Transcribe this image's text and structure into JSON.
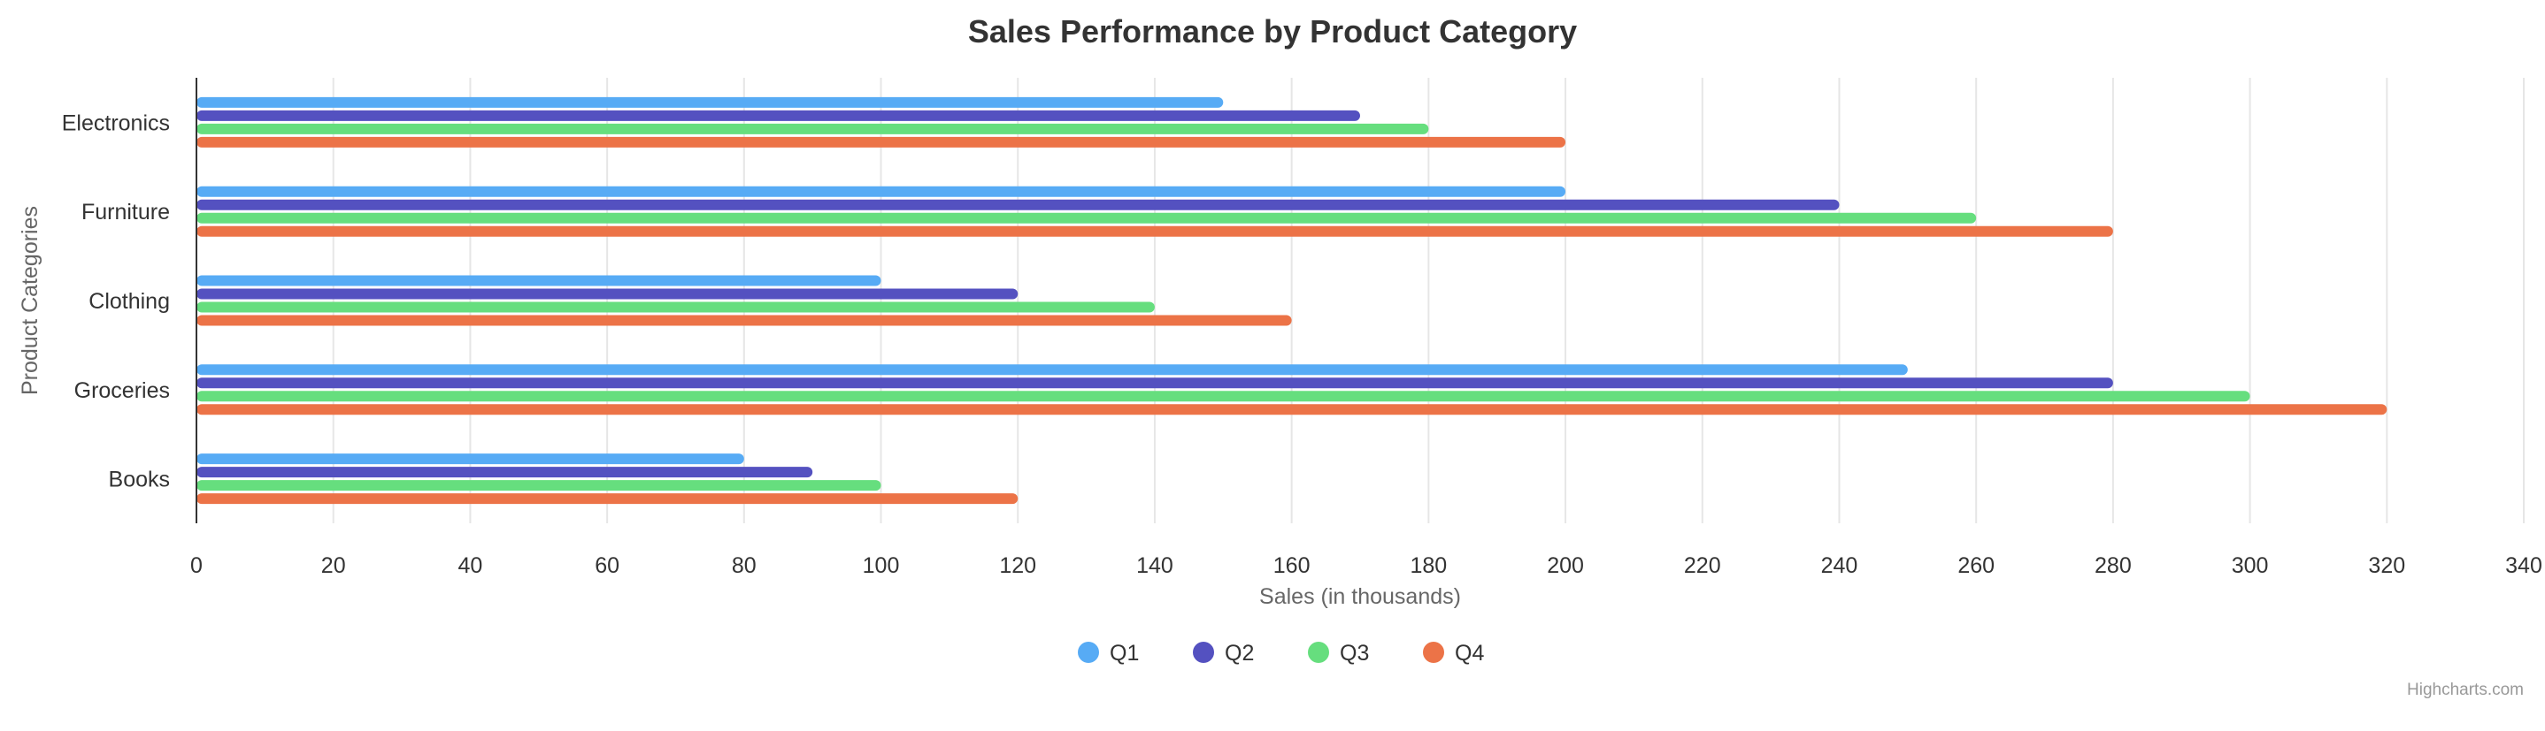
{
  "chart_data": {
    "type": "bar",
    "orientation": "horizontal",
    "title": "Sales Performance by Product Category",
    "xlabel": "Sales (in thousands)",
    "ylabel": "Product Categories",
    "categories": [
      "Electronics",
      "Furniture",
      "Clothing",
      "Groceries",
      "Books"
    ],
    "series": [
      {
        "name": "Q1",
        "color": "#57abf5",
        "values": [
          150,
          200,
          100,
          250,
          80
        ]
      },
      {
        "name": "Q2",
        "color": "#5451c0",
        "values": [
          170,
          240,
          120,
          280,
          90
        ]
      },
      {
        "name": "Q3",
        "color": "#66de7e",
        "values": [
          180,
          260,
          140,
          300,
          100
        ]
      },
      {
        "name": "Q4",
        "color": "#ec7347",
        "values": [
          200,
          280,
          160,
          320,
          120
        ]
      }
    ],
    "xlim": [
      0,
      340
    ],
    "xticks": [
      0,
      20,
      40,
      60,
      80,
      100,
      120,
      140,
      160,
      180,
      200,
      220,
      240,
      260,
      280,
      300,
      320,
      340
    ],
    "grid": true,
    "legend": "bottom-center",
    "credits": "Highcharts.com"
  }
}
